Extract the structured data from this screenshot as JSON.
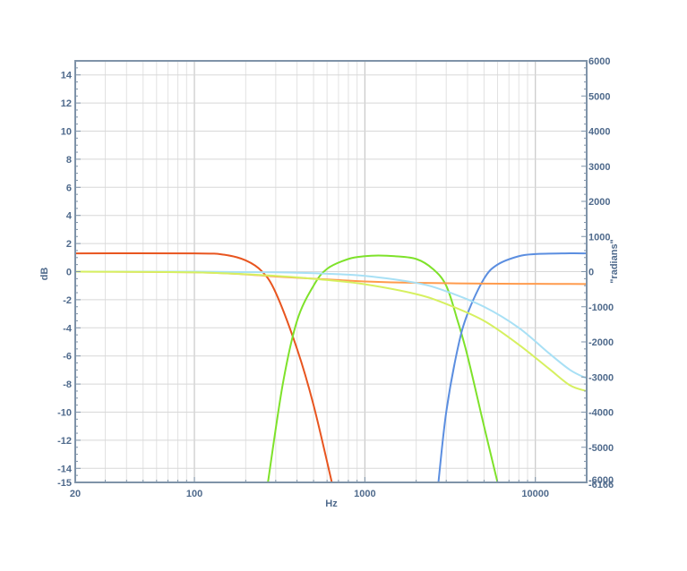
{
  "chart_data": {
    "type": "line",
    "xlabel": "Hz",
    "ylabel": "dB",
    "y2label": "\"radians\"",
    "x_scale": "log",
    "xlim": [
      20,
      20000
    ],
    "ylim": [
      -15,
      15
    ],
    "y2lim": [
      -6000,
      6000
    ],
    "grid": true,
    "x_ticks": [
      {
        "value": 20,
        "label": "20"
      },
      {
        "value": 100,
        "label": "100"
      },
      {
        "value": 1000,
        "label": "1000"
      },
      {
        "value": 10000,
        "label": "10000"
      }
    ],
    "y_ticks": [
      {
        "value": 14,
        "label": "14"
      },
      {
        "value": 12,
        "label": "12"
      },
      {
        "value": 10,
        "label": "10"
      },
      {
        "value": 8,
        "label": "8"
      },
      {
        "value": 6,
        "label": "6"
      },
      {
        "value": 4,
        "label": "4"
      },
      {
        "value": 2,
        "label": "2"
      },
      {
        "value": 0,
        "label": "0"
      },
      {
        "value": -2,
        "label": "-2"
      },
      {
        "value": -4,
        "label": "-4"
      },
      {
        "value": -6,
        "label": "-6"
      },
      {
        "value": -8,
        "label": "-8"
      },
      {
        "value": -10,
        "label": "-10"
      },
      {
        "value": -12,
        "label": "-12"
      },
      {
        "value": -14,
        "label": "-14"
      },
      {
        "value": -15,
        "label": "-15"
      }
    ],
    "y2_ticks": [
      {
        "value": 6000,
        "label": "6000"
      },
      {
        "value": 5000,
        "label": "5000"
      },
      {
        "value": 4000,
        "label": "4000"
      },
      {
        "value": 3000,
        "label": "3000"
      },
      {
        "value": 2000,
        "label": "2000"
      },
      {
        "value": 1000,
        "label": "1000"
      },
      {
        "value": 0,
        "label": "0"
      },
      {
        "value": -1000,
        "label": "-1000"
      },
      {
        "value": -2000,
        "label": "-2000"
      },
      {
        "value": -3000,
        "label": "-3000"
      },
      {
        "value": -4000,
        "label": "-4000"
      },
      {
        "value": -5000,
        "label": "-5000"
      },
      {
        "value": -6000,
        "label": "-6000"
      },
      {
        "value": -6166,
        "label": "-6166"
      }
    ],
    "series": [
      {
        "color": "#e8551f",
        "x": [
          20,
          100,
          150,
          200,
          250,
          300,
          400,
          500,
          640
        ],
        "y": [
          1.3,
          1.3,
          1.2,
          0.8,
          0.0,
          -1.5,
          -5.5,
          -9.5,
          -15
        ]
      },
      {
        "color": "#7ee22a",
        "x": [
          270,
          330,
          400,
          500,
          600,
          800,
          1000,
          1200,
          1500,
          2000,
          2500,
          3000,
          3500,
          4000,
          5000,
          6000
        ],
        "y": [
          -15,
          -8,
          -3.5,
          -1.0,
          0.2,
          0.9,
          1.1,
          1.15,
          1.1,
          0.9,
          0.2,
          -1.0,
          -3.5,
          -6.0,
          -11.0,
          -15
        ]
      },
      {
        "color": "#5b8ee0",
        "x": [
          2700,
          3000,
          3500,
          4000,
          5000,
          6000,
          8000,
          10000,
          15000,
          20000
        ],
        "y": [
          -15,
          -10,
          -5.5,
          -3.0,
          -0.5,
          0.5,
          1.1,
          1.25,
          1.3,
          1.3
        ]
      },
      {
        "color": "#ff9b4d",
        "x": [
          20,
          100,
          200,
          300,
          500,
          700,
          1000,
          2000,
          5000,
          10000,
          20000
        ],
        "y": [
          0.0,
          -0.05,
          -0.2,
          -0.35,
          -0.5,
          -0.6,
          -0.7,
          -0.8,
          -0.85,
          -0.87,
          -0.88
        ]
      },
      {
        "color": "#a8e0f5",
        "x": [
          20,
          100,
          300,
          600,
          1000,
          2000,
          3000,
          5000,
          8000,
          12000,
          16000,
          20000
        ],
        "y": [
          0.0,
          0.0,
          -0.05,
          -0.15,
          -0.3,
          -0.8,
          -1.4,
          -2.5,
          -4.0,
          -5.8,
          -7.0,
          -7.6
        ]
      },
      {
        "color": "#d6f060",
        "x": [
          20,
          100,
          300,
          600,
          1000,
          2000,
          3000,
          5000,
          8000,
          12000,
          16000,
          20000
        ],
        "y": [
          0.0,
          -0.05,
          -0.3,
          -0.6,
          -0.9,
          -1.6,
          -2.3,
          -3.5,
          -5.2,
          -6.9,
          -8.1,
          -8.5
        ]
      }
    ]
  }
}
